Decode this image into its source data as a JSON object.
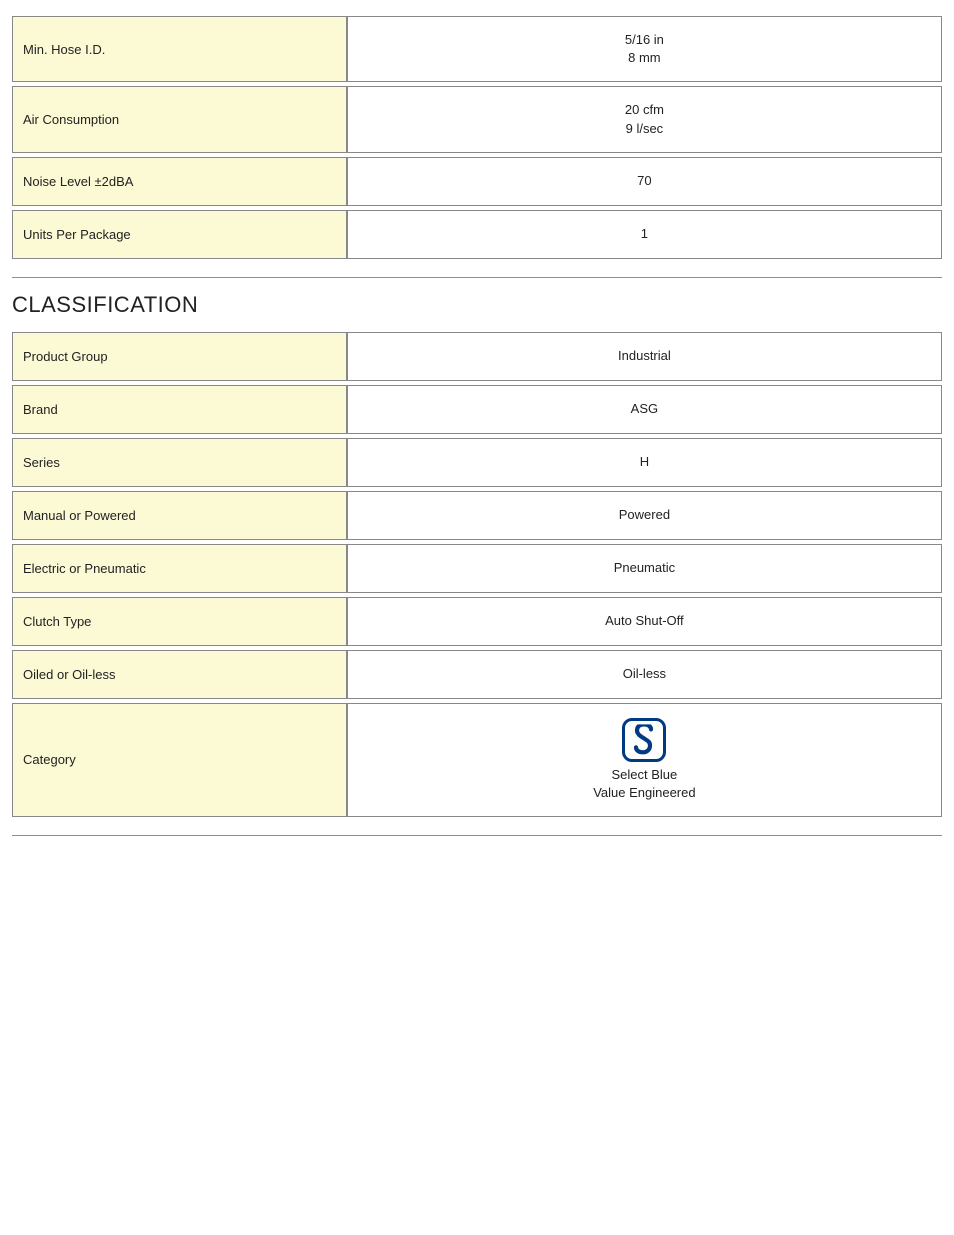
{
  "specs": {
    "rows": [
      {
        "label": "Min. Hose I.D.",
        "value": "5/16 in\n8 mm"
      },
      {
        "label": "Air Consumption",
        "value": "20 cfm\n9 l/sec"
      },
      {
        "label": "Noise Level ±2dBA",
        "value": "70"
      },
      {
        "label": "Units Per Package",
        "value": "1"
      }
    ]
  },
  "classification": {
    "title": "CLASSIFICATION",
    "rows": [
      {
        "label": "Product Group",
        "value": "Industrial"
      },
      {
        "label": "Brand",
        "value": "ASG"
      },
      {
        "label": "Series",
        "value": "H"
      },
      {
        "label": "Manual or Powered",
        "value": "Powered"
      },
      {
        "label": "Electric or Pneumatic",
        "value": "Pneumatic"
      },
      {
        "label": "Clutch Type",
        "value": "Auto Shut-Off"
      },
      {
        "label": "Oiled or Oil-less",
        "value": "Oil-less"
      }
    ],
    "category_label": "Category",
    "category_value": "Select Blue\nValue Engineered",
    "icon_border_color": "#003a82",
    "icon_glyph_color": "#003a82"
  },
  "style": {
    "label_bg": "#fcfad5",
    "cell_border": "#888888",
    "hr_color": "#4fa3c7",
    "text_color": "#222222"
  }
}
